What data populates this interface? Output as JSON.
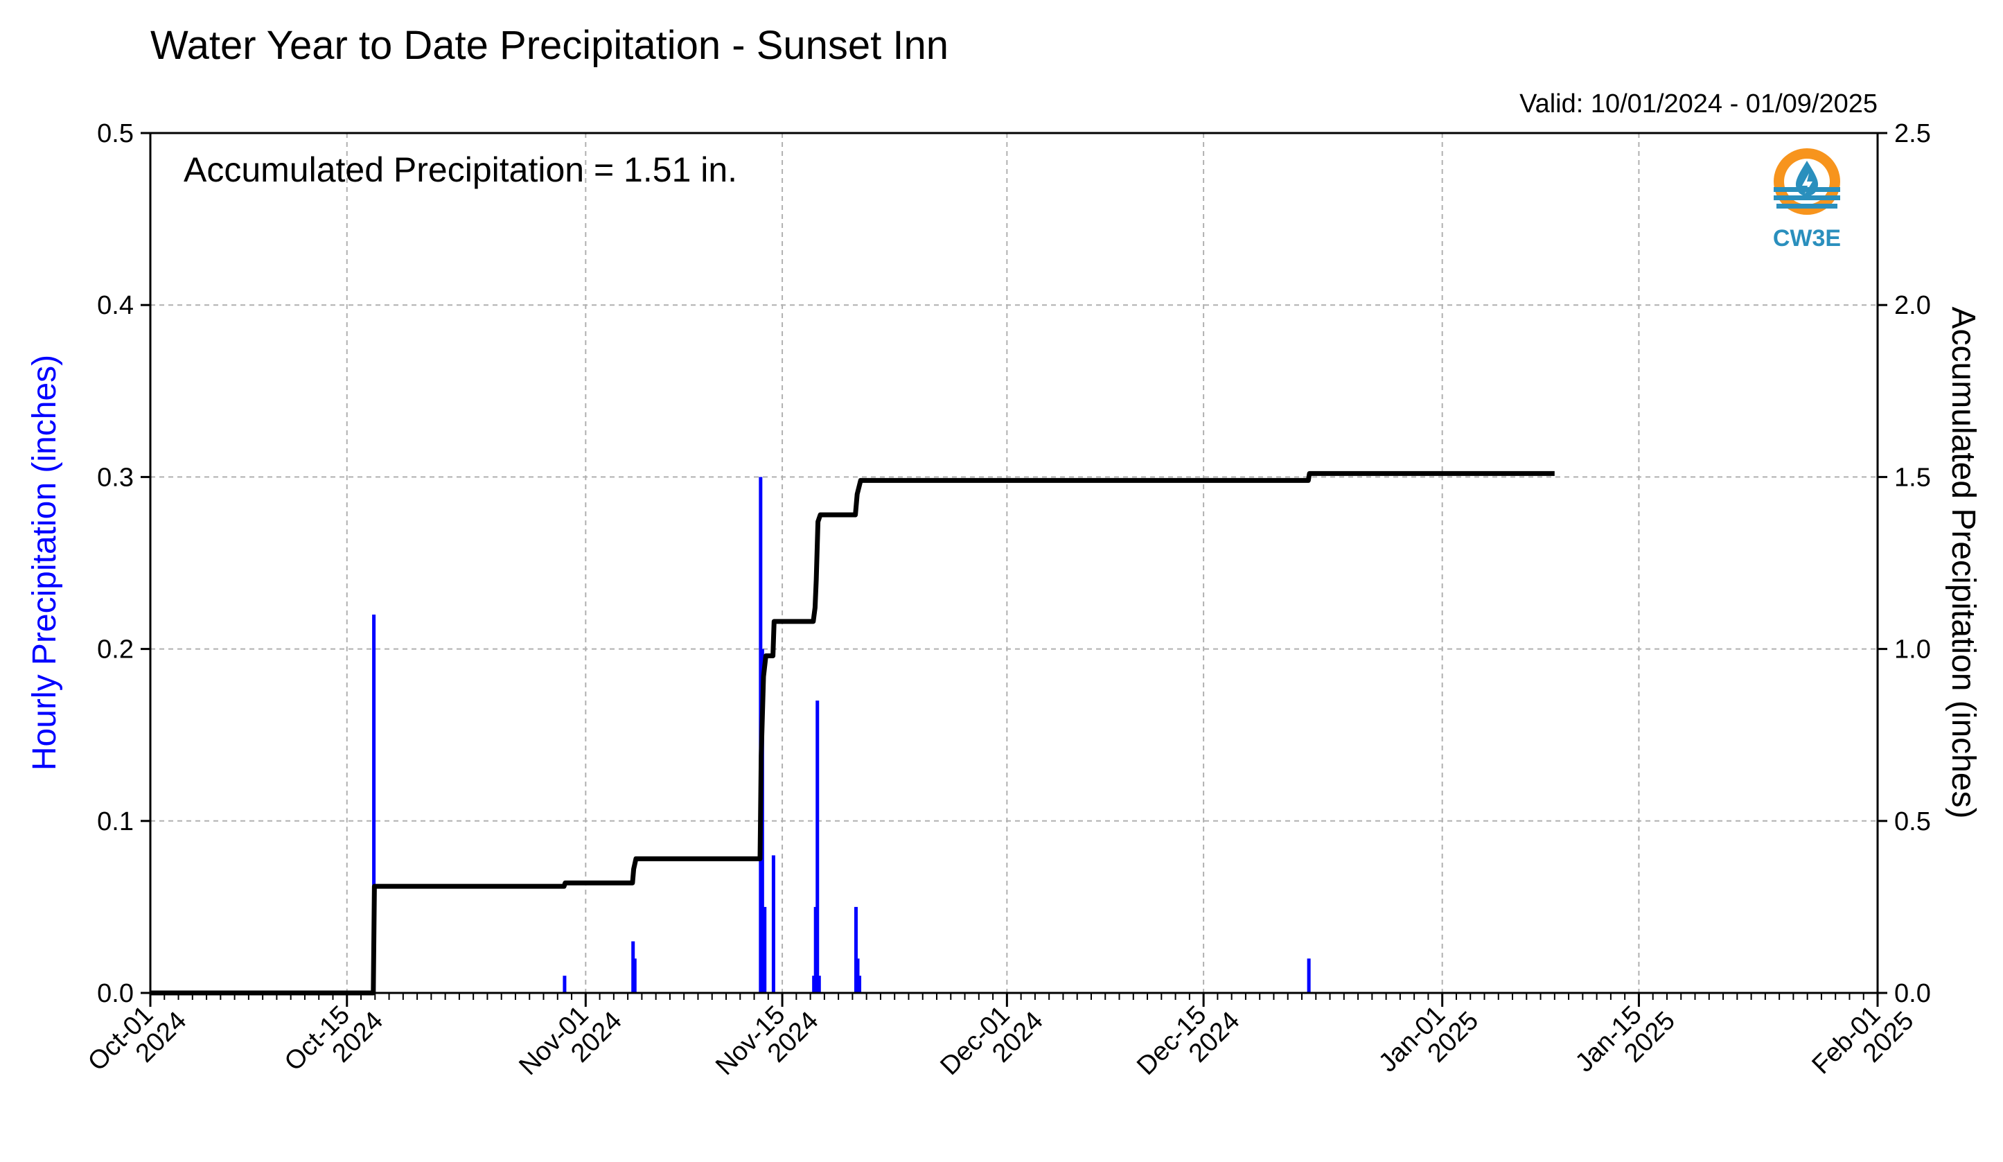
{
  "title": "Water Year to Date Precipitation - Sunset Inn",
  "valid_text": "Valid: 10/01/2024 - 01/09/2025",
  "annotation": "Accumulated Precipitation = 1.51 in.",
  "logo": {
    "text": "CW3E",
    "icon": "cw3e-water-drop-logo"
  },
  "colors": {
    "hourly_bars": "#0000ff",
    "accumulated_line": "#000000",
    "grid": "#b0b0b0",
    "logo_orange": "#f7941d",
    "logo_blue": "#2a8fbd"
  },
  "chart_data": {
    "type": "bar+line",
    "title": "Water Year to Date Precipitation - Sunset Inn",
    "subtitle": "Valid: 10/01/2024 - 01/09/2025",
    "annotation": "Accumulated Precipitation = 1.51 in.",
    "xlabel": "",
    "ylabel_left": "Hourly Precipitation (inches)",
    "ylabel_right": "Accumulated Precipitation (inches)",
    "xlim": [
      "2024-10-01",
      "2025-02-01"
    ],
    "ylim_left": [
      0,
      0.5
    ],
    "ylim_right": [
      0,
      2.5
    ],
    "yticks_left": [
      "0.0",
      "0.1",
      "0.2",
      "0.3",
      "0.4",
      "0.5"
    ],
    "yticks_right": [
      "0.0",
      "0.5",
      "1.0",
      "1.5",
      "2.0",
      "2.5"
    ],
    "xticks": [
      {
        "date": "2024-10-01",
        "line1": "Oct-01",
        "line2": "2024"
      },
      {
        "date": "2024-10-15",
        "line1": "Oct-15",
        "line2": "2024"
      },
      {
        "date": "2024-11-01",
        "line1": "Nov-01",
        "line2": "2024"
      },
      {
        "date": "2024-11-15",
        "line1": "Nov-15",
        "line2": "2024"
      },
      {
        "date": "2024-12-01",
        "line1": "Dec-01",
        "line2": "2024"
      },
      {
        "date": "2024-12-15",
        "line1": "Dec-15",
        "line2": "2024"
      },
      {
        "date": "2025-01-01",
        "line1": "Jan-01",
        "line2": "2025"
      },
      {
        "date": "2025-01-15",
        "line1": "Jan-15",
        "line2": "2025"
      },
      {
        "date": "2025-02-01",
        "line1": "Feb-01",
        "line2": "2025"
      }
    ],
    "grid": true,
    "series": [
      {
        "name": "Hourly Precipitation (inches)",
        "type": "bar",
        "axis": "left",
        "points": [
          {
            "t": "2024-10-16T22:00",
            "v": 0.22
          },
          {
            "t": "2024-10-30T12:00",
            "v": 0.01
          },
          {
            "t": "2024-11-04T09:00",
            "v": 0.03
          },
          {
            "t": "2024-11-04T12:00",
            "v": 0.02
          },
          {
            "t": "2024-11-13T11:00",
            "v": 0.3
          },
          {
            "t": "2024-11-13T14:00",
            "v": 0.2
          },
          {
            "t": "2024-11-13T18:00",
            "v": 0.05
          },
          {
            "t": "2024-11-14T09:00",
            "v": 0.08
          },
          {
            "t": "2024-11-17T06:00",
            "v": 0.01
          },
          {
            "t": "2024-11-17T09:00",
            "v": 0.05
          },
          {
            "t": "2024-11-17T12:00",
            "v": 0.17
          },
          {
            "t": "2024-11-17T15:00",
            "v": 0.01
          },
          {
            "t": "2024-11-20T06:00",
            "v": 0.05
          },
          {
            "t": "2024-11-20T09:00",
            "v": 0.02
          },
          {
            "t": "2024-11-20T12:00",
            "v": 0.01
          },
          {
            "t": "2024-12-22T12:00",
            "v": 0.02
          }
        ]
      },
      {
        "name": "Accumulated Precipitation (inches)",
        "type": "line",
        "axis": "right",
        "points": [
          {
            "t": "2024-10-01T00:00",
            "v": 0.0
          },
          {
            "t": "2024-10-16T21:00",
            "v": 0.0
          },
          {
            "t": "2024-10-16T23:00",
            "v": 0.31
          },
          {
            "t": "2024-10-30T11:00",
            "v": 0.31
          },
          {
            "t": "2024-10-30T13:00",
            "v": 0.32
          },
          {
            "t": "2024-11-04T08:00",
            "v": 0.32
          },
          {
            "t": "2024-11-04T10:00",
            "v": 0.36
          },
          {
            "t": "2024-11-04T14:00",
            "v": 0.39
          },
          {
            "t": "2024-11-13T10:00",
            "v": 0.39
          },
          {
            "t": "2024-11-13T12:00",
            "v": 0.69
          },
          {
            "t": "2024-11-13T16:00",
            "v": 0.92
          },
          {
            "t": "2024-11-13T20:00",
            "v": 0.98
          },
          {
            "t": "2024-11-14T08:00",
            "v": 0.98
          },
          {
            "t": "2024-11-14T10:00",
            "v": 1.08
          },
          {
            "t": "2024-11-17T05:00",
            "v": 1.08
          },
          {
            "t": "2024-11-17T08:00",
            "v": 1.12
          },
          {
            "t": "2024-11-17T10:00",
            "v": 1.2
          },
          {
            "t": "2024-11-17T13:00",
            "v": 1.37
          },
          {
            "t": "2024-11-17T17:00",
            "v": 1.39
          },
          {
            "t": "2024-11-20T05:00",
            "v": 1.39
          },
          {
            "t": "2024-11-20T08:00",
            "v": 1.45
          },
          {
            "t": "2024-11-20T14:00",
            "v": 1.49
          },
          {
            "t": "2024-12-22T11:00",
            "v": 1.49
          },
          {
            "t": "2024-12-22T13:00",
            "v": 1.51
          },
          {
            "t": "2025-01-09T00:00",
            "v": 1.51
          }
        ]
      }
    ]
  }
}
